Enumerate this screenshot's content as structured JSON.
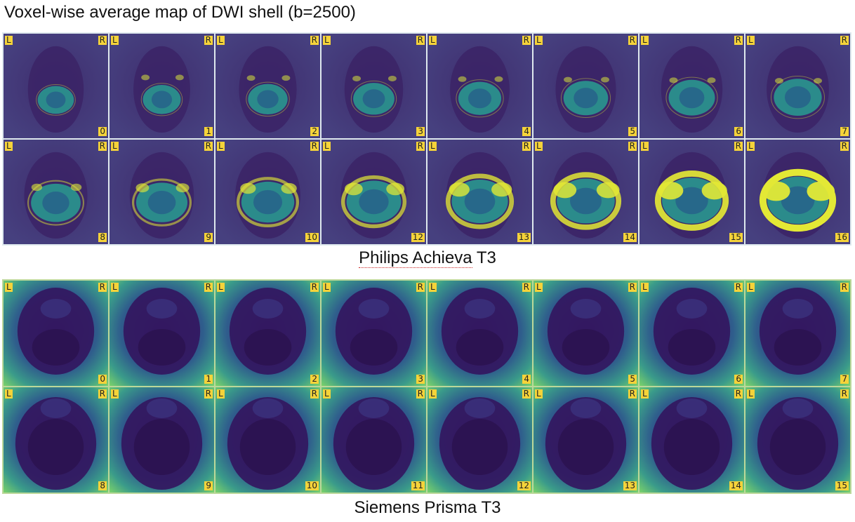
{
  "title": "Voxel-wise average map of DWI shell (b=2500)",
  "colors": {
    "background_dark": "#3b1f5e",
    "panel_bg_philips": "#463b7d",
    "tissue_teal": "#2a8a8c",
    "tissue_yellow": "#e3e835",
    "tissue_green": "#5cc863",
    "label_yellow": "#f5d33a",
    "panel_bg_siemens": "#2f6f8e"
  },
  "philips": {
    "caption_name": "Philips Achieva",
    "caption_model": "T3",
    "left_label": "L",
    "right_label": "R",
    "slices": [
      "0",
      "1",
      "2",
      "3",
      "4",
      "5",
      "6",
      "7",
      "8",
      "9",
      "10",
      "12",
      "13",
      "14",
      "15",
      "16"
    ]
  },
  "siemens": {
    "caption": "Siemens Prisma T3",
    "left_label": "L",
    "right_label": "R",
    "slices": [
      "0",
      "1",
      "2",
      "3",
      "4",
      "5",
      "6",
      "7",
      "8",
      "9",
      "10",
      "11",
      "12",
      "13",
      "14",
      "15"
    ]
  }
}
